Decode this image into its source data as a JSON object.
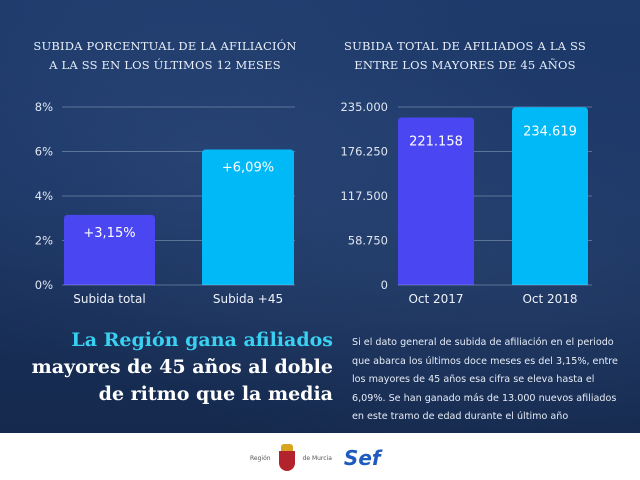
{
  "chart_data": [
    {
      "type": "bar",
      "title": "SUBIDA PORCENTUAL DE LA AFILIACIÓN A LA SS EN LOS ÚLTIMOS 12 MESES",
      "title_lines": [
        "SUBIDA PORCENTUAL DE LA AFILIACIÓN",
        "A LA SS EN LOS ÚLTIMOS 12 MESES"
      ],
      "categories": [
        "Subida total",
        "Subida +45"
      ],
      "values": [
        3.15,
        6.09
      ],
      "data_labels": [
        "+3,15%",
        "+6,09%"
      ],
      "yticks": [
        "0%",
        "2%",
        "4%",
        "6%",
        "8%"
      ],
      "ylim": [
        0,
        8
      ],
      "grid": true,
      "colors": [
        "#4a46f2",
        "#00b9f6"
      ]
    },
    {
      "type": "bar",
      "title": "SUBIDA TOTAL DE AFILIADOS A LA SS ENTRE LOS MAYORES DE 45 AÑOS",
      "title_lines": [
        "SUBIDA TOTAL DE AFILIADOS A LA SS",
        "ENTRE LOS MAYORES DE 45 AÑOS"
      ],
      "categories": [
        "Oct 2017",
        "Oct 2018"
      ],
      "values": [
        221158,
        234619
      ],
      "data_labels": [
        "221.158",
        "234.619"
      ],
      "yticks": [
        "0",
        "58.750",
        "117.500",
        "176.250",
        "235.000"
      ],
      "ylim": [
        0,
        235000
      ],
      "grid": true,
      "colors": [
        "#4a46f2",
        "#00b9f6"
      ]
    }
  ],
  "headline": [
    "La Región gana afiliados",
    "mayores de 45 años al doble",
    "de ritmo que la media"
  ],
  "paragraph": [
    "Si el dato general de subida de afiliación en el periodo",
    "que abarca los últimos doce meses es del 3,15%, entre",
    "los mayores de 45 años esa cifra se eleva hasta el",
    "6,09%. Se han ganado más de 13.000 nuevos afiliados",
    "en este tramo de edad durante el último año"
  ],
  "logos": {
    "region_left": "Región",
    "region_right": "de Murcia",
    "sef": "Sef"
  }
}
